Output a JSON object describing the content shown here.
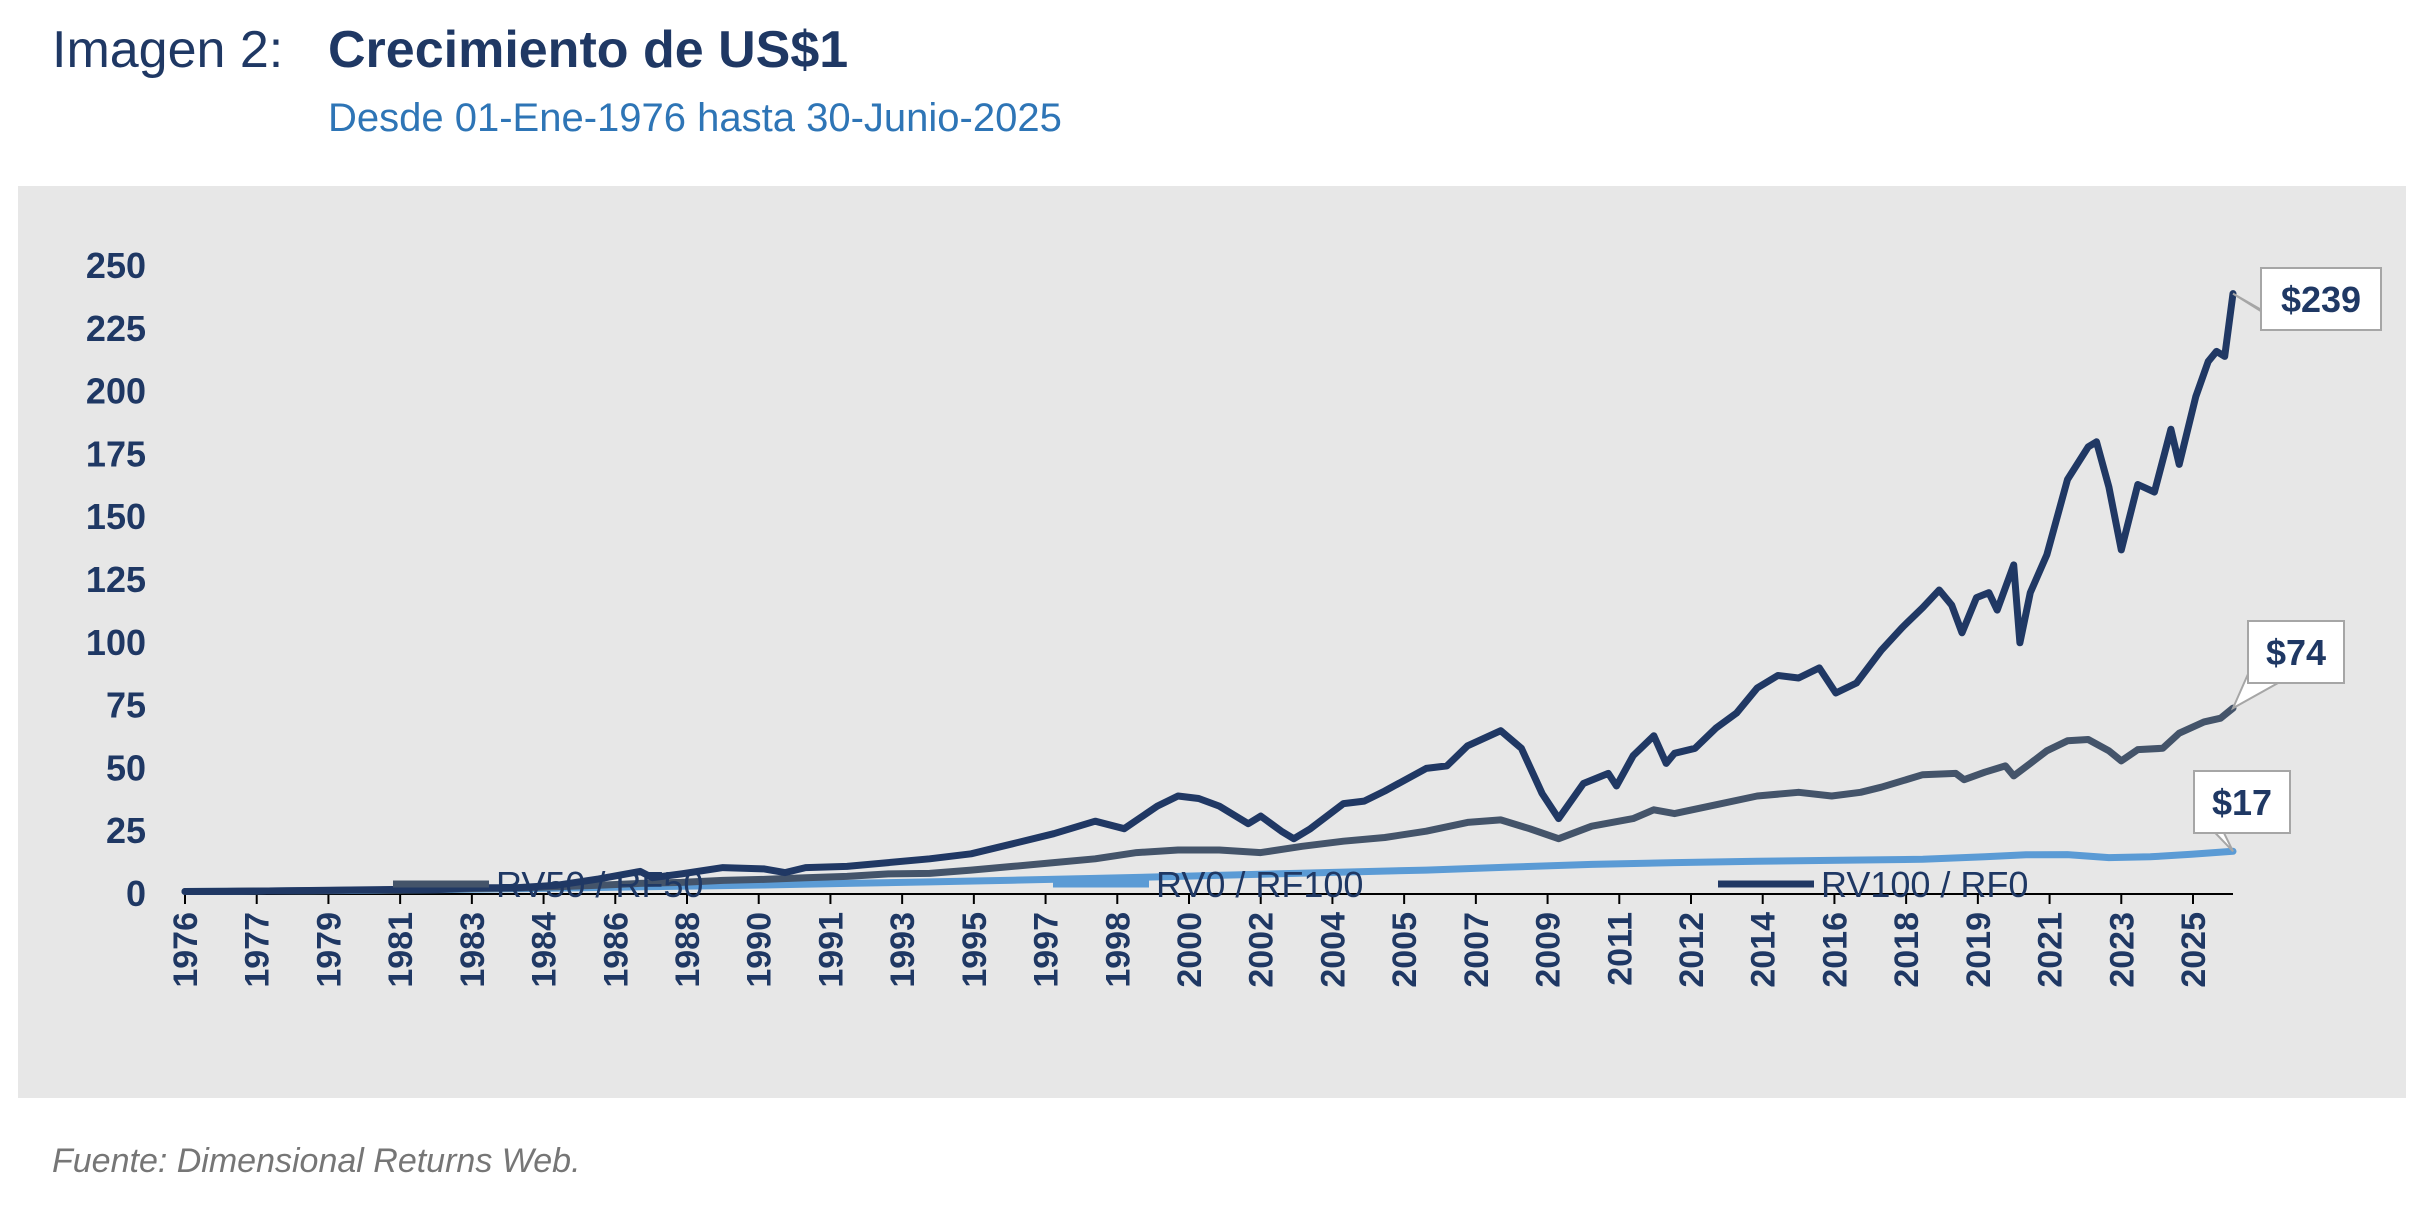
{
  "figure": {
    "prefix": "Imagen 2:",
    "title": "Crecimiento de US$1",
    "subtitle": "Desde 01-Ene-1976 hasta 30-Junio-2025",
    "source": "Fuente: Dimensional Returns Web."
  },
  "colors": {
    "panel_background": "#e7e7e7",
    "axis_text": "#1f3864",
    "RV50_RF50": "#44546a",
    "RV0_RF100": "#5b9bd5",
    "RV100_RF0": "#203864"
  },
  "chart_data": {
    "type": "line",
    "title": "Crecimiento de US$1",
    "subtitle": "Desde 01-Ene-1976 hasta 30-Junio-2025",
    "xlabel": "",
    "ylabel": "",
    "xlim": [
      1976.0,
      2025.5
    ],
    "ylim": [
      0,
      250
    ],
    "yticks": [
      "0",
      "25",
      "50",
      "75",
      "100",
      "125",
      "150",
      "175",
      "200",
      "225",
      "250"
    ],
    "xtick_labels": [
      "1976",
      "1977",
      "1979",
      "1981",
      "1983",
      "1984",
      "1986",
      "1988",
      "1990",
      "1991",
      "1993",
      "1995",
      "1997",
      "1998",
      "2000",
      "2002",
      "2004",
      "2005",
      "2007",
      "2009",
      "2011",
      "2012",
      "2014",
      "2016",
      "2018",
      "2019",
      "2021",
      "2023",
      "2025"
    ],
    "grid": false,
    "legend_position": "bottom",
    "series": [
      {
        "name": "RV50 / RF50",
        "color": "#44546a",
        "points": [
          [
            1976.0,
            1.0
          ],
          [
            1977.0,
            1.1
          ],
          [
            1978.0,
            1.2
          ],
          [
            1979.0,
            1.3
          ],
          [
            1980.0,
            1.5
          ],
          [
            1981.0,
            1.6
          ],
          [
            1982.0,
            1.8
          ],
          [
            1983.0,
            2.2
          ],
          [
            1984.0,
            2.4
          ],
          [
            1985.0,
            2.9
          ],
          [
            1986.0,
            3.5
          ],
          [
            1987.0,
            4.2
          ],
          [
            1988.0,
            4.6
          ],
          [
            1989.0,
            5.4
          ],
          [
            1990.0,
            5.8
          ],
          [
            1991.0,
            6.5
          ],
          [
            1992.0,
            7.0
          ],
          [
            1993.0,
            8.0
          ],
          [
            1994.0,
            8.2
          ],
          [
            1995.0,
            9.5
          ],
          [
            1996.0,
            11.0
          ],
          [
            1997.0,
            12.5
          ],
          [
            1998.0,
            14.0
          ],
          [
            1999.0,
            16.5
          ],
          [
            2000.0,
            17.5
          ],
          [
            2001.0,
            17.5
          ],
          [
            2002.0,
            16.5
          ],
          [
            2003.0,
            19.0
          ],
          [
            2004.0,
            21.0
          ],
          [
            2005.0,
            22.5
          ],
          [
            2006.0,
            25.0
          ],
          [
            2007.0,
            28.5
          ],
          [
            2007.8,
            29.5
          ],
          [
            2008.5,
            26.0
          ],
          [
            2009.2,
            22.0
          ],
          [
            2010.0,
            27.0
          ],
          [
            2011.0,
            30.0
          ],
          [
            2011.5,
            33.5
          ],
          [
            2012.0,
            32.0
          ],
          [
            2013.0,
            35.5
          ],
          [
            2014.0,
            39.0
          ],
          [
            2015.0,
            40.5
          ],
          [
            2015.8,
            39.0
          ],
          [
            2016.5,
            40.5
          ],
          [
            2017.0,
            42.5
          ],
          [
            2018.0,
            47.5
          ],
          [
            2018.8,
            48.0
          ],
          [
            2019.0,
            45.5
          ],
          [
            2019.5,
            48.5
          ],
          [
            2020.0,
            51.0
          ],
          [
            2020.2,
            47.0
          ],
          [
            2020.6,
            52.0
          ],
          [
            2021.0,
            57.0
          ],
          [
            2021.5,
            61.0
          ],
          [
            2022.0,
            61.5
          ],
          [
            2022.5,
            57.0
          ],
          [
            2022.8,
            53.0
          ],
          [
            2023.2,
            57.5
          ],
          [
            2023.8,
            58.0
          ],
          [
            2024.2,
            64.0
          ],
          [
            2024.8,
            68.5
          ],
          [
            2025.2,
            70.0
          ],
          [
            2025.5,
            74.0
          ]
        ]
      },
      {
        "name": "RV0 / RF100",
        "color": "#5b9bd5",
        "points": [
          [
            1976.0,
            1.0
          ],
          [
            1978.0,
            1.2
          ],
          [
            1980.0,
            1.4
          ],
          [
            1982.0,
            1.7
          ],
          [
            1984.0,
            2.1
          ],
          [
            1986.0,
            2.6
          ],
          [
            1988.0,
            3.1
          ],
          [
            1990.0,
            3.6
          ],
          [
            1992.0,
            4.2
          ],
          [
            1994.0,
            4.8
          ],
          [
            1996.0,
            5.5
          ],
          [
            1998.0,
            6.2
          ],
          [
            2000.0,
            7.0
          ],
          [
            2002.0,
            7.9
          ],
          [
            2004.0,
            8.7
          ],
          [
            2006.0,
            9.5
          ],
          [
            2008.0,
            10.7
          ],
          [
            2010.0,
            11.8
          ],
          [
            2012.0,
            12.5
          ],
          [
            2014.0,
            13.0
          ],
          [
            2016.0,
            13.4
          ],
          [
            2018.0,
            13.8
          ],
          [
            2019.5,
            14.8
          ],
          [
            2020.5,
            15.6
          ],
          [
            2021.5,
            15.7
          ],
          [
            2022.5,
            14.5
          ],
          [
            2023.5,
            14.8
          ],
          [
            2024.5,
            15.8
          ],
          [
            2025.5,
            17.0
          ]
        ]
      },
      {
        "name": "RV100 / RF0",
        "color": "#203864",
        "points": [
          [
            1976.0,
            1.0
          ],
          [
            1977.0,
            1.0
          ],
          [
            1978.0,
            1.2
          ],
          [
            1979.0,
            1.4
          ],
          [
            1980.0,
            1.6
          ],
          [
            1981.0,
            1.8
          ],
          [
            1982.0,
            1.7
          ],
          [
            1983.0,
            2.5
          ],
          [
            1984.0,
            2.5
          ],
          [
            1985.0,
            3.5
          ],
          [
            1986.0,
            6.0
          ],
          [
            1987.0,
            9.0
          ],
          [
            1987.3,
            6.5
          ],
          [
            1988.0,
            8.0
          ],
          [
            1989.0,
            10.5
          ],
          [
            1990.0,
            10.0
          ],
          [
            1990.5,
            8.5
          ],
          [
            1991.0,
            10.5
          ],
          [
            1992.0,
            11.0
          ],
          [
            1993.0,
            12.5
          ],
          [
            1994.0,
            14.0
          ],
          [
            1995.0,
            16.0
          ],
          [
            1996.0,
            20.0
          ],
          [
            1997.0,
            24.0
          ],
          [
            1998.0,
            29.0
          ],
          [
            1998.7,
            26.0
          ],
          [
            1999.5,
            35.0
          ],
          [
            2000.0,
            39.0
          ],
          [
            2000.5,
            38.0
          ],
          [
            2001.0,
            35.0
          ],
          [
            2001.7,
            28.0
          ],
          [
            2002.0,
            31.0
          ],
          [
            2002.5,
            25.0
          ],
          [
            2002.8,
            22.0
          ],
          [
            2003.2,
            26.0
          ],
          [
            2004.0,
            36.0
          ],
          [
            2004.5,
            37.0
          ],
          [
            2005.0,
            41.0
          ],
          [
            2006.0,
            50.0
          ],
          [
            2006.5,
            51.0
          ],
          [
            2007.0,
            59.0
          ],
          [
            2007.8,
            65.0
          ],
          [
            2008.3,
            58.0
          ],
          [
            2008.8,
            40.0
          ],
          [
            2009.2,
            30.0
          ],
          [
            2009.8,
            44.0
          ],
          [
            2010.4,
            48.0
          ],
          [
            2010.6,
            43.0
          ],
          [
            2011.0,
            55.0
          ],
          [
            2011.5,
            63.0
          ],
          [
            2011.8,
            52.0
          ],
          [
            2012.0,
            56.0
          ],
          [
            2012.5,
            58.0
          ],
          [
            2013.0,
            66.0
          ],
          [
            2013.5,
            72.0
          ],
          [
            2014.0,
            82.0
          ],
          [
            2014.5,
            87.0
          ],
          [
            2015.0,
            86.0
          ],
          [
            2015.5,
            90.0
          ],
          [
            2015.9,
            80.0
          ],
          [
            2016.4,
            84.0
          ],
          [
            2017.0,
            97.0
          ],
          [
            2017.5,
            106.0
          ],
          [
            2018.0,
            114.0
          ],
          [
            2018.4,
            121.0
          ],
          [
            2018.7,
            115.0
          ],
          [
            2018.95,
            104.0
          ],
          [
            2019.3,
            118.0
          ],
          [
            2019.6,
            120.0
          ],
          [
            2019.8,
            113.0
          ],
          [
            2020.2,
            131.0
          ],
          [
            2020.35,
            100.0
          ],
          [
            2020.6,
            120.0
          ],
          [
            2021.0,
            135.0
          ],
          [
            2021.5,
            165.0
          ],
          [
            2022.0,
            178.0
          ],
          [
            2022.2,
            180.0
          ],
          [
            2022.5,
            162.0
          ],
          [
            2022.8,
            137.0
          ],
          [
            2023.2,
            163.0
          ],
          [
            2023.6,
            160.0
          ],
          [
            2024.0,
            185.0
          ],
          [
            2024.2,
            171.0
          ],
          [
            2024.6,
            198.0
          ],
          [
            2024.9,
            212.0
          ],
          [
            2025.1,
            216.0
          ],
          [
            2025.3,
            214.0
          ],
          [
            2025.5,
            239.0
          ]
        ]
      }
    ],
    "annotations": [
      {
        "series": "RV100 / RF0",
        "x": 2025.5,
        "y": 239,
        "text": "$239"
      },
      {
        "series": "RV50 / RF50",
        "x": 2025.5,
        "y": 74,
        "text": "$74"
      },
      {
        "series": "RV0 / RF100",
        "x": 2025.5,
        "y": 17,
        "text": "$17"
      }
    ]
  }
}
